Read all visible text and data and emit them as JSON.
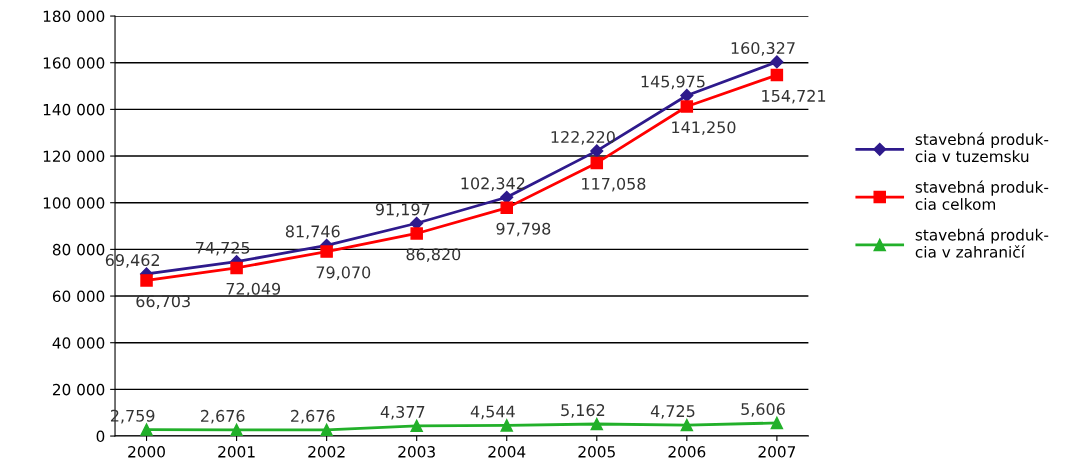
{
  "chart_data": {
    "type": "line",
    "categories": [
      "2000",
      "2001",
      "2002",
      "2003",
      "2004",
      "2005",
      "2006",
      "2007"
    ],
    "series": [
      {
        "name": "stavebná produk-\ncia v tuzemsku",
        "color": "#2e1a8c",
        "marker": "diamond",
        "values": [
          69462,
          74725,
          81746,
          91197,
          102342,
          122220,
          145975,
          160327
        ],
        "value_labels": [
          "69,462",
          "74,725",
          "81,746",
          "91,197",
          "102,342",
          "122,220",
          "145,975",
          "160,327"
        ]
      },
      {
        "name": "stavebná produk-\ncia celkom",
        "color": "#ff0000",
        "marker": "square",
        "values": [
          66703,
          72049,
          79070,
          86820,
          97798,
          117058,
          141250,
          154721
        ],
        "value_labels": [
          "66,703",
          "72,049",
          "79,070",
          "86,820",
          "97,798",
          "117,058",
          "141,250",
          "154,721"
        ]
      },
      {
        "name": "stavebná produk-\ncia v zahraničí",
        "color": "#22b02a",
        "marker": "triangle",
        "values": [
          2759,
          2676,
          2676,
          4377,
          4544,
          5162,
          4725,
          5606
        ],
        "value_labels": [
          "2,759",
          "2,676",
          "2,676",
          "4,377",
          "4,544",
          "5,162",
          "4,725",
          "5,606"
        ]
      }
    ],
    "ylim": [
      0,
      180000
    ],
    "yticks": [
      {
        "value": 0,
        "label": "0"
      },
      {
        "value": 20000,
        "label": "20 000"
      },
      {
        "value": 40000,
        "label": "40 000"
      },
      {
        "value": 60000,
        "label": "60 000"
      },
      {
        "value": 80000,
        "label": "80 000"
      },
      {
        "value": 100000,
        "label": "100 000"
      },
      {
        "value": 120000,
        "label": "120 000"
      },
      {
        "value": 140000,
        "label": "140 000"
      },
      {
        "value": 160000,
        "label": "160 000"
      },
      {
        "value": 180000,
        "label": "180 000"
      }
    ],
    "grid": "y",
    "legend": "right",
    "line_style": "solid"
  }
}
